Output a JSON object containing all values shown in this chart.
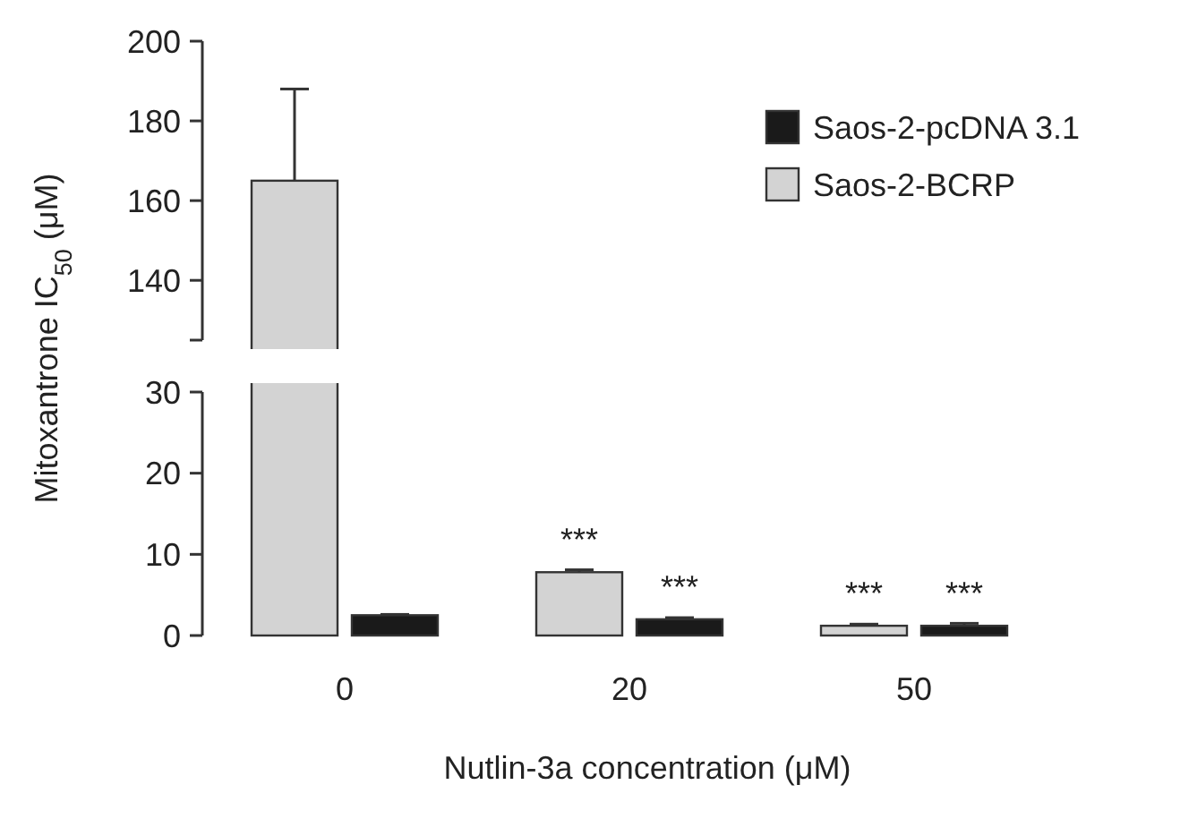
{
  "chart_data": [
    {
      "type": "bar",
      "ylabel": "Mitoxantrone IC$_{50}$ (μM)",
      "categories": [
        "0",
        "20",
        "50"
      ],
      "ylim": [
        125,
        200
      ],
      "yticks": [
        140,
        160,
        180,
        200
      ],
      "tick_labels": "y",
      "legend": "top right",
      "series": [
        {
          "name": "Saos-2-pcDNA 3.1",
          "color": "#1a1a1a",
          "values": [
            null,
            null,
            null
          ]
        },
        {
          "name": "Saos-2-BCRP",
          "color": "#d3d3d3",
          "values": [
            165,
            null,
            null
          ],
          "errors": [
            23,
            null,
            null
          ]
        }
      ]
    },
    {
      "type": "bar",
      "xlabel": "Nutlin-3a concentration (μM)",
      "categories": [
        "0",
        "20",
        "50"
      ],
      "ylim": [
        0,
        30
      ],
      "yticks": [
        0,
        10,
        20,
        30
      ],
      "series": [
        {
          "color": "#1a1a1a",
          "values": [
            2.5,
            2.0,
            1.2
          ],
          "errors": [
            0.1,
            0.2,
            0.3
          ]
        },
        {
          "color": "#d3d3d3",
          "values": [
            null,
            7.8,
            1.2
          ],
          "errors": [
            null,
            0.3,
            0.2
          ]
        }
      ],
      "annotations": [
        {
          "text": "***",
          "x": "20",
          "y": 7.8
        },
        {
          "text": "***",
          "x": "20",
          "y": 2.0
        },
        {
          "text": "***",
          "x": "50",
          "y": 1.2
        },
        {
          "text": "***",
          "x": "50",
          "y": 1.2
        }
      ]
    }
  ]
}
